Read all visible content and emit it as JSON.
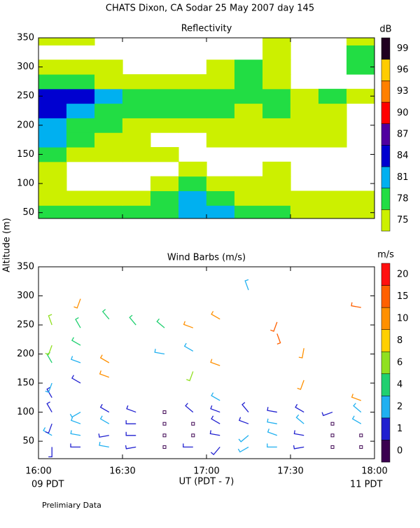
{
  "title": "CHATS Dixon, CA  Sodar  25 May 2007  day 145",
  "ylabel": "Altitude (m)",
  "footnote": "Prelimiary Data",
  "chart_data": [
    {
      "type": "heatmap",
      "title": "Reflectivity",
      "colorbar_label": "dB",
      "xlim": [
        16,
        18
      ],
      "ylim": [
        40,
        350
      ],
      "yticks": [
        50,
        100,
        150,
        200,
        250,
        300,
        350
      ],
      "levels": [
        75,
        78,
        81,
        84,
        87,
        90,
        93,
        96,
        99
      ],
      "colors": [
        "#ccf000",
        "#22dd44",
        "#00b0f0",
        "#0000d0",
        "#5000a0",
        "#ff0000",
        "#ff8000",
        "#ffcc00",
        "#200020"
      ],
      "x": [
        16.083,
        16.25,
        16.417,
        16.583,
        16.75,
        16.917,
        17.083,
        17.25,
        17.417,
        17.583,
        17.75,
        17.917
      ],
      "y": [
        50,
        75,
        100,
        125,
        150,
        175,
        200,
        225,
        250,
        275,
        300,
        325,
        350
      ],
      "z": [
        [
          79,
          79,
          79,
          79,
          79,
          82,
          82,
          79,
          79,
          76,
          76,
          76
        ],
        [
          76,
          76,
          76,
          76,
          79,
          82,
          79,
          76,
          76,
          76,
          76,
          76
        ],
        [
          76,
          null,
          null,
          null,
          76,
          79,
          76,
          76,
          76,
          null,
          null,
          null
        ],
        [
          76,
          null,
          null,
          null,
          null,
          76,
          null,
          null,
          76,
          null,
          null,
          null
        ],
        [
          79,
          76,
          76,
          76,
          76,
          null,
          null,
          null,
          null,
          null,
          null,
          null
        ],
        [
          82,
          79,
          76,
          76,
          null,
          null,
          76,
          76,
          76,
          76,
          76,
          null
        ],
        [
          82,
          79,
          79,
          76,
          76,
          76,
          76,
          76,
          76,
          76,
          76,
          null
        ],
        [
          85,
          82,
          79,
          79,
          79,
          79,
          79,
          76,
          79,
          76,
          76,
          null
        ],
        [
          85,
          85,
          82,
          79,
          79,
          79,
          79,
          79,
          79,
          76,
          79,
          76
        ],
        [
          79,
          79,
          76,
          76,
          76,
          76,
          76,
          79,
          76,
          null,
          null,
          null
        ],
        [
          76,
          76,
          76,
          null,
          null,
          null,
          76,
          79,
          76,
          null,
          null,
          79
        ],
        [
          null,
          null,
          null,
          null,
          null,
          null,
          null,
          null,
          76,
          null,
          null,
          79
        ],
        [
          76,
          76,
          null,
          null,
          null,
          null,
          null,
          null,
          76,
          null,
          null,
          76
        ]
      ]
    },
    {
      "type": "barbs",
      "title": "Wind Barbs (m/s)",
      "colorbar_label": "m/s",
      "xlim": [
        16,
        18
      ],
      "ylim": [
        20,
        350
      ],
      "xticks": [
        {
          "value": 16,
          "label": "16:00"
        },
        {
          "value": 16.5,
          "label": "16:30"
        },
        {
          "value": 17,
          "label": "17:00"
        },
        {
          "value": 17.5,
          "label": "17:30"
        },
        {
          "value": 18,
          "label": "18:00"
        }
      ],
      "yticks": [
        50,
        100,
        150,
        200,
        250,
        300,
        350
      ],
      "xlabel": "UT  (PDT - 7)",
      "x_start_label": "09 PDT",
      "x_end_label": "11 PDT",
      "levels": [
        0,
        1,
        2,
        4,
        6,
        8,
        10,
        15,
        20
      ],
      "colors": [
        "#3b0050",
        "#2020d0",
        "#20b0f0",
        "#20d070",
        "#90e020",
        "#ffd000",
        "#ff9000",
        "#ff6000",
        "#ff1010"
      ],
      "x": [
        16.08,
        16.25,
        16.42,
        16.58,
        16.75,
        16.92,
        17.08,
        17.25,
        17.42,
        17.58,
        17.75,
        17.92,
        16.08,
        16.25,
        16.42,
        16.58,
        16.75,
        16.92,
        17.08,
        17.25,
        17.42,
        17.58,
        17.75,
        17.92,
        16.08,
        16.25,
        16.42,
        16.58,
        16.75,
        16.92,
        17.08,
        17.25,
        17.42,
        17.58,
        17.75,
        17.92,
        16.08,
        16.25,
        16.42,
        16.58,
        16.75,
        16.92,
        17.08,
        17.25,
        17.42,
        17.58,
        17.75,
        17.92,
        16.08,
        16.08,
        16.08,
        16.08,
        16.08,
        16.25,
        16.25,
        16.25,
        16.25,
        16.25,
        16.42,
        16.42,
        16.42,
        16.58,
        16.75,
        16.75,
        16.92,
        16.92,
        16.92,
        17.08,
        17.08,
        17.08,
        17.42,
        17.42,
        17.25,
        17.58,
        17.58,
        17.92,
        17.92
      ],
      "y": [
        40,
        40,
        40,
        40,
        40,
        40,
        40,
        40,
        40,
        40,
        40,
        40,
        60,
        60,
        60,
        60,
        60,
        60,
        60,
        60,
        60,
        60,
        60,
        60,
        80,
        80,
        80,
        80,
        80,
        80,
        80,
        80,
        80,
        80,
        80,
        80,
        100,
        100,
        100,
        100,
        100,
        100,
        100,
        100,
        100,
        100,
        100,
        100,
        125,
        150,
        185,
        215,
        250,
        150,
        185,
        215,
        245,
        295,
        160,
        185,
        260,
        250,
        245,
        200,
        245,
        205,
        170,
        180,
        260,
        120,
        235,
        255,
        310,
        210,
        155,
        120,
        280
      ],
      "speed": [
        1,
        1,
        2,
        1,
        0,
        1,
        1,
        2,
        2,
        1,
        0,
        0,
        2,
        2,
        1,
        1,
        0,
        0,
        1,
        2,
        2,
        1,
        0,
        0,
        1,
        2,
        2,
        1,
        0,
        0,
        1,
        1,
        2,
        2,
        0,
        2,
        1,
        2,
        1,
        1,
        0,
        1,
        1,
        1,
        1,
        1,
        1,
        2,
        1,
        2,
        5,
        6,
        6,
        1,
        3,
        4,
        5,
        10,
        10,
        10,
        5,
        5,
        4,
        3,
        10,
        3,
        6,
        10,
        10,
        2,
        15,
        15,
        3,
        10,
        10,
        10,
        15
      ],
      "direction": [
        180,
        270,
        280,
        260,
        0,
        270,
        220,
        240,
        270,
        260,
        0,
        0,
        300,
        280,
        260,
        270,
        0,
        0,
        280,
        230,
        290,
        280,
        0,
        0,
        200,
        290,
        300,
        270,
        0,
        0,
        300,
        290,
        280,
        310,
        0,
        300,
        330,
        240,
        300,
        290,
        0,
        310,
        290,
        320,
        280,
        300,
        250,
        310,
        330,
        200,
        330,
        200,
        340,
        300,
        290,
        300,
        330,
        200,
        290,
        300,
        320,
        320,
        310,
        280,
        290,
        300,
        200,
        290,
        300,
        300,
        160,
        200,
        340,
        190,
        200,
        290,
        280
      ]
    }
  ]
}
